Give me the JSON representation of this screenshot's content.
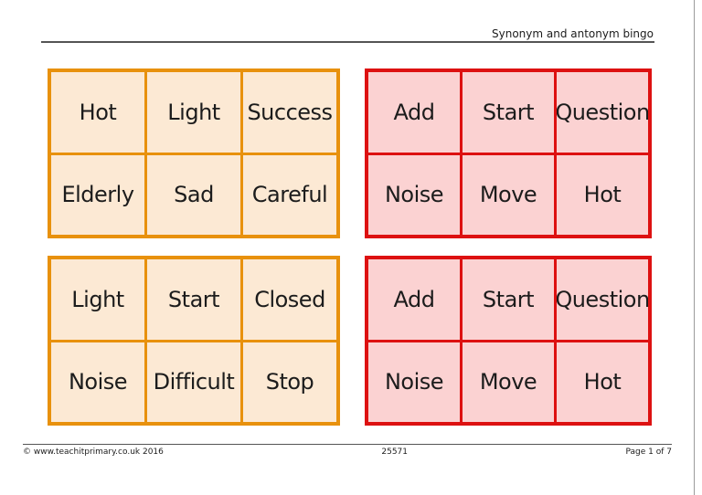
{
  "page": {
    "title": "Synonym and antonym bingo",
    "footer": {
      "copyright": "© www.teachitprimary.co.uk 2016",
      "doc_number": "25571",
      "page_label": "Page 1 of 7"
    }
  },
  "colors": {
    "orange_border": "#e8910d",
    "orange_bg": "#fce9d4",
    "red_border": "#dd1111",
    "red_bg": "#fbd2d2",
    "text": "#1c1c1c",
    "line": "#555555"
  },
  "cards": [
    {
      "theme": "orange",
      "rows": [
        [
          "Hot",
          "Light",
          "Success"
        ],
        [
          "Elderly",
          "Sad",
          "Careful"
        ]
      ]
    },
    {
      "theme": "red",
      "rows": [
        [
          "Add",
          "Start",
          "Question"
        ],
        [
          "Noise",
          "Move",
          "Hot"
        ]
      ]
    },
    {
      "theme": "orange",
      "rows": [
        [
          "Light",
          "Start",
          "Closed"
        ],
        [
          "Noise",
          "Difficult",
          "Stop"
        ]
      ]
    },
    {
      "theme": "red",
      "rows": [
        [
          "Add",
          "Start",
          "Question"
        ],
        [
          "Noise",
          "Move",
          "Hot"
        ]
      ]
    }
  ]
}
